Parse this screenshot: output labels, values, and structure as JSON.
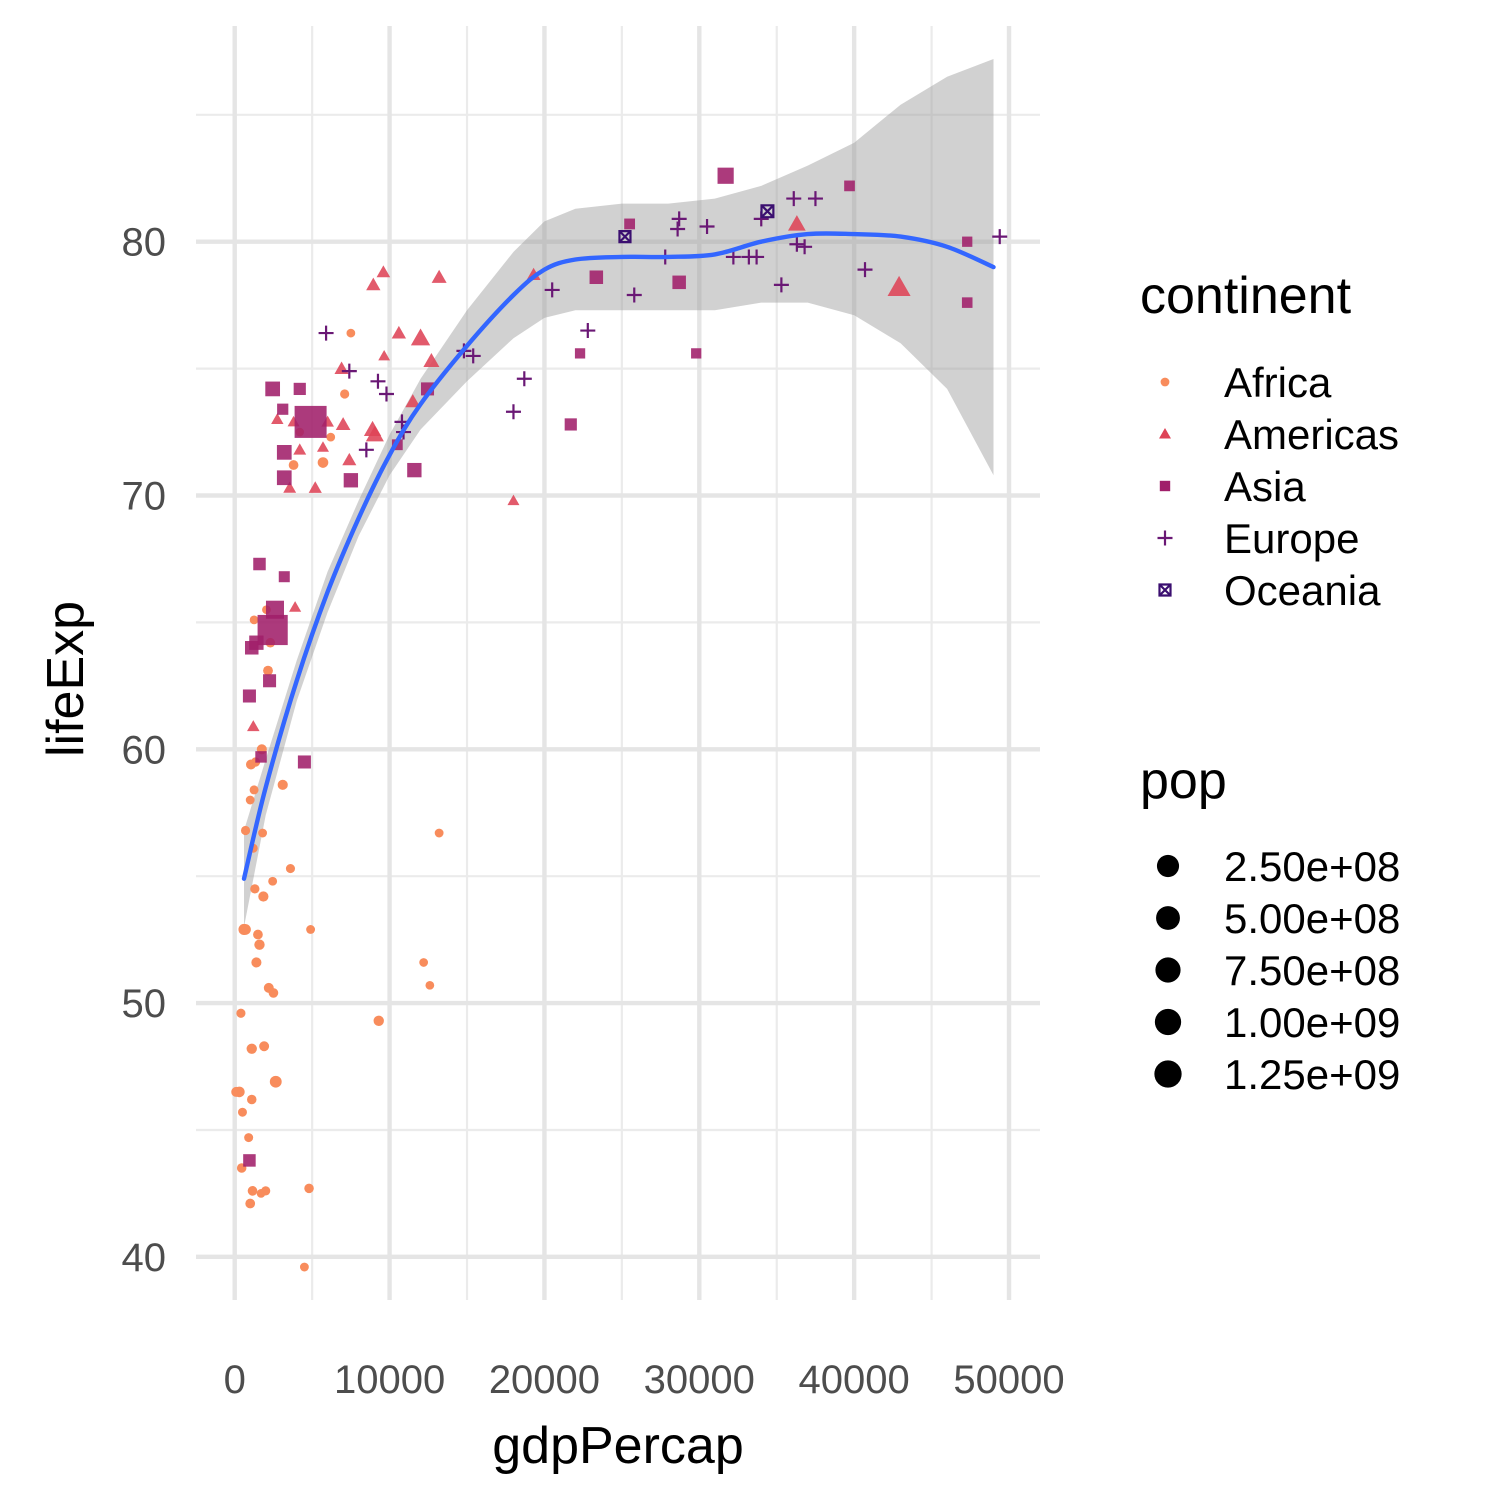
{
  "chart_data": {
    "type": "scatter",
    "xlabel": "gdpPercap",
    "ylabel": "lifeExp",
    "xlim": [
      -2500,
      52000
    ],
    "ylim": [
      38.3,
      88.5
    ],
    "x_ticks": [
      0,
      10000,
      20000,
      30000,
      40000,
      50000
    ],
    "x_tick_labels": [
      "0",
      "10000",
      "20000",
      "30000",
      "40000",
      "50000"
    ],
    "y_ticks": [
      40,
      50,
      60,
      70,
      80
    ],
    "y_tick_labels": [
      "40",
      "50",
      "60",
      "70",
      "80"
    ],
    "grid": true,
    "legend_placement": "right",
    "color_legend": {
      "title": "continent",
      "entries": [
        {
          "name": "Africa",
          "shape": "circle",
          "color": "#F88C5C"
        },
        {
          "name": "Americas",
          "shape": "triangle",
          "color": "#DE4356"
        },
        {
          "name": "Asia",
          "shape": "square",
          "color": "#A01F6A"
        },
        {
          "name": "Europe",
          "shape": "plus",
          "color": "#6A1875"
        },
        {
          "name": "Oceania",
          "shape": "square-x",
          "color": "#3B0F70"
        }
      ]
    },
    "size_legend": {
      "title": "pop",
      "entries": [
        {
          "label": "2.50e+08",
          "value": 250000000
        },
        {
          "label": "5.00e+08",
          "value": 500000000
        },
        {
          "label": "7.50e+08",
          "value": 750000000
        },
        {
          "label": "1.00e+09",
          "value": 1000000000
        },
        {
          "label": "1.25e+09",
          "value": 1250000000
        }
      ]
    },
    "smooth": {
      "color": "#3366FF",
      "band_color": "#999999",
      "x": [
        600,
        2000,
        4000,
        6000,
        8000,
        10000,
        12000,
        15000,
        18000,
        20000,
        22000,
        25000,
        28000,
        31000,
        34000,
        37000,
        40000,
        43000,
        46000,
        49000
      ],
      "y": [
        54.9,
        58.5,
        62.7,
        66.2,
        69.1,
        71.6,
        73.6,
        75.9,
        77.9,
        78.9,
        79.3,
        79.4,
        79.4,
        79.5,
        80.0,
        80.3,
        80.3,
        80.2,
        79.8,
        79.0
      ],
      "lower": [
        53.0,
        57.4,
        61.9,
        65.4,
        68.4,
        70.8,
        72.6,
        74.5,
        76.2,
        77.0,
        77.3,
        77.3,
        77.3,
        77.3,
        77.6,
        77.6,
        77.1,
        76.0,
        74.2,
        70.8
      ],
      "upper": [
        56.8,
        59.6,
        63.5,
        67.0,
        69.8,
        72.4,
        74.6,
        77.3,
        79.6,
        80.8,
        81.3,
        81.5,
        81.5,
        81.7,
        82.2,
        83.0,
        83.9,
        85.4,
        86.5,
        87.2
      ]
    },
    "series": [
      {
        "name": "Africa",
        "points": [
          [
            100,
            46.5,
            20000000
          ],
          [
            300,
            46.5,
            30000000
          ],
          [
            400,
            49.6,
            8000000
          ],
          [
            500,
            45.7,
            6000000
          ],
          [
            450,
            43.5,
            12000000
          ],
          [
            600,
            52.9,
            40000000
          ],
          [
            700,
            52.9,
            30000000
          ],
          [
            700,
            56.8,
            8000000
          ],
          [
            900,
            44.7,
            6000000
          ],
          [
            1000,
            58.0,
            5000000
          ],
          [
            1000,
            42.1,
            15000000
          ],
          [
            1050,
            59.4,
            18000000
          ],
          [
            1100,
            48.2,
            25000000
          ],
          [
            1100,
            46.2,
            12000000
          ],
          [
            1150,
            42.6,
            14000000
          ],
          [
            1200,
            56.1,
            5000000
          ],
          [
            1250,
            58.4,
            6000000
          ],
          [
            1250,
            65.1,
            4000000
          ],
          [
            1300,
            54.5,
            9000000
          ],
          [
            1350,
            59.5,
            8000000
          ],
          [
            1400,
            51.6,
            20000000
          ],
          [
            1500,
            52.7,
            15000000
          ],
          [
            1600,
            52.3,
            25000000
          ],
          [
            1700,
            42.5,
            4000000
          ],
          [
            1750,
            60.0,
            20000000
          ],
          [
            1800,
            56.7,
            5000000
          ],
          [
            1850,
            54.2,
            22000000
          ],
          [
            1900,
            48.3,
            18000000
          ],
          [
            2000,
            42.6,
            8000000
          ],
          [
            2050,
            65.5,
            4000000
          ],
          [
            2150,
            63.1,
            16000000
          ],
          [
            2200,
            50.6,
            18000000
          ],
          [
            2300,
            64.2,
            12000000
          ],
          [
            2450,
            54.8,
            5000000
          ],
          [
            2500,
            50.4,
            14000000
          ],
          [
            2650,
            46.9,
            60000000
          ],
          [
            3100,
            58.6,
            22000000
          ],
          [
            3600,
            55.3,
            7000000
          ],
          [
            3800,
            71.2,
            15000000
          ],
          [
            4200,
            72.5,
            3000000
          ],
          [
            4500,
            39.6,
            5000000
          ],
          [
            4800,
            42.7,
            12000000
          ],
          [
            4900,
            52.9,
            5000000
          ],
          [
            5700,
            71.3,
            30000000
          ],
          [
            6200,
            72.3,
            4000000
          ],
          [
            7100,
            74.0,
            8000000
          ],
          [
            7500,
            76.4,
            4000000
          ],
          [
            9300,
            49.3,
            25000000
          ],
          [
            12200,
            51.6,
            4000000
          ],
          [
            12600,
            50.7,
            4000000
          ],
          [
            13200,
            56.7,
            5000000
          ]
        ]
      },
      {
        "name": "Americas",
        "points": [
          [
            1200,
            60.9,
            9000000
          ],
          [
            2750,
            73.0,
            8000000
          ],
          [
            3550,
            70.3,
            12000000
          ],
          [
            3800,
            72.9,
            5000000
          ],
          [
            3900,
            65.6,
            6000000
          ],
          [
            4200,
            71.8,
            12000000
          ],
          [
            5200,
            70.3,
            15000000
          ],
          [
            5700,
            71.9,
            5000000
          ],
          [
            6000,
            72.9,
            10000000
          ],
          [
            6900,
            75.0,
            28000000
          ],
          [
            7000,
            72.8,
            35000000
          ],
          [
            7400,
            71.4,
            26000000
          ],
          [
            8900,
            72.6,
            90000000
          ],
          [
            8950,
            78.3,
            30000000
          ],
          [
            9050,
            72.4,
            110000000
          ],
          [
            9600,
            78.8,
            20000000
          ],
          [
            9650,
            75.5,
            4000000
          ],
          [
            10600,
            76.4,
            30000000
          ],
          [
            11500,
            73.7,
            40000000
          ],
          [
            12000,
            76.2,
            150000000
          ],
          [
            12700,
            75.3,
            60000000
          ],
          [
            13200,
            78.6,
            40000000
          ],
          [
            18000,
            69.8,
            5000000
          ],
          [
            19300,
            78.7,
            25000000
          ],
          [
            36300,
            80.7,
            100000000
          ],
          [
            42900,
            78.2,
            301000000
          ]
        ]
      },
      {
        "name": "Asia",
        "points": [
          [
            950,
            43.8,
            30000000
          ],
          [
            950,
            62.1,
            40000000
          ],
          [
            1100,
            64.0,
            50000000
          ],
          [
            1400,
            64.2,
            70000000
          ],
          [
            1600,
            67.3,
            30000000
          ],
          [
            1700,
            59.7,
            15000000
          ],
          [
            2250,
            62.7,
            40000000
          ],
          [
            2450,
            74.2,
            80000000
          ],
          [
            2450,
            64.7,
            1100000000
          ],
          [
            2600,
            65.5,
            200000000
          ],
          [
            3100,
            73.4,
            12000000
          ],
          [
            3200,
            66.8,
            10000000
          ],
          [
            3200,
            71.7,
            80000000
          ],
          [
            3200,
            70.7,
            80000000
          ],
          [
            4200,
            74.2,
            25000000
          ],
          [
            4500,
            59.5,
            40000000
          ],
          [
            4900,
            72.9,
            1300000000
          ],
          [
            7500,
            70.6,
            70000000
          ],
          [
            10500,
            72.0,
            8000000
          ],
          [
            11600,
            71.0,
            70000000
          ],
          [
            12450,
            74.2,
            40000000
          ],
          [
            22300,
            75.6,
            4000000
          ],
          [
            21700,
            72.8,
            25000000
          ],
          [
            23350,
            78.6,
            50000000
          ],
          [
            25500,
            80.7,
            8000000
          ],
          [
            28700,
            78.4,
            50000000
          ],
          [
            29800,
            75.6,
            4000000
          ],
          [
            31700,
            82.6,
            127000000
          ],
          [
            39700,
            82.2,
            7000000
          ],
          [
            47300,
            80.0,
            4000000
          ],
          [
            47300,
            77.6,
            6000000
          ]
        ]
      },
      {
        "name": "Europe",
        "points": [
          [
            5900,
            76.4,
            4000000
          ],
          [
            7400,
            74.9,
            10000000
          ],
          [
            8500,
            71.8,
            10000000
          ],
          [
            9250,
            74.5,
            10000000
          ],
          [
            9800,
            74.0,
            10000000
          ],
          [
            10800,
            72.9,
            10000000
          ],
          [
            10900,
            72.5,
            10000000
          ],
          [
            14800,
            75.7,
            10000000
          ],
          [
            15400,
            75.5,
            10000000
          ],
          [
            18000,
            73.3,
            10000000
          ],
          [
            18700,
            74.6,
            10000000
          ],
          [
            20500,
            78.1,
            10000000
          ],
          [
            22800,
            76.5,
            10000000
          ],
          [
            25800,
            77.9,
            10000000
          ],
          [
            27800,
            79.4,
            10000000
          ],
          [
            28600,
            80.5,
            10000000
          ],
          [
            28700,
            80.9,
            10000000
          ],
          [
            30500,
            80.6,
            10000000
          ],
          [
            32200,
            79.4,
            10000000
          ],
          [
            33200,
            79.4,
            10000000
          ],
          [
            33700,
            79.4,
            10000000
          ],
          [
            34000,
            80.9,
            10000000
          ],
          [
            35300,
            78.3,
            10000000
          ],
          [
            36100,
            81.7,
            10000000
          ],
          [
            36300,
            79.9,
            10000000
          ],
          [
            36800,
            79.8,
            10000000
          ],
          [
            37500,
            81.7,
            10000000
          ],
          [
            40700,
            78.9,
            10000000
          ],
          [
            49400,
            80.2,
            10000000
          ]
        ]
      },
      {
        "name": "Oceania",
        "points": [
          [
            25200,
            80.2,
            4000000
          ],
          [
            34400,
            81.2,
            20000000
          ]
        ]
      }
    ]
  }
}
